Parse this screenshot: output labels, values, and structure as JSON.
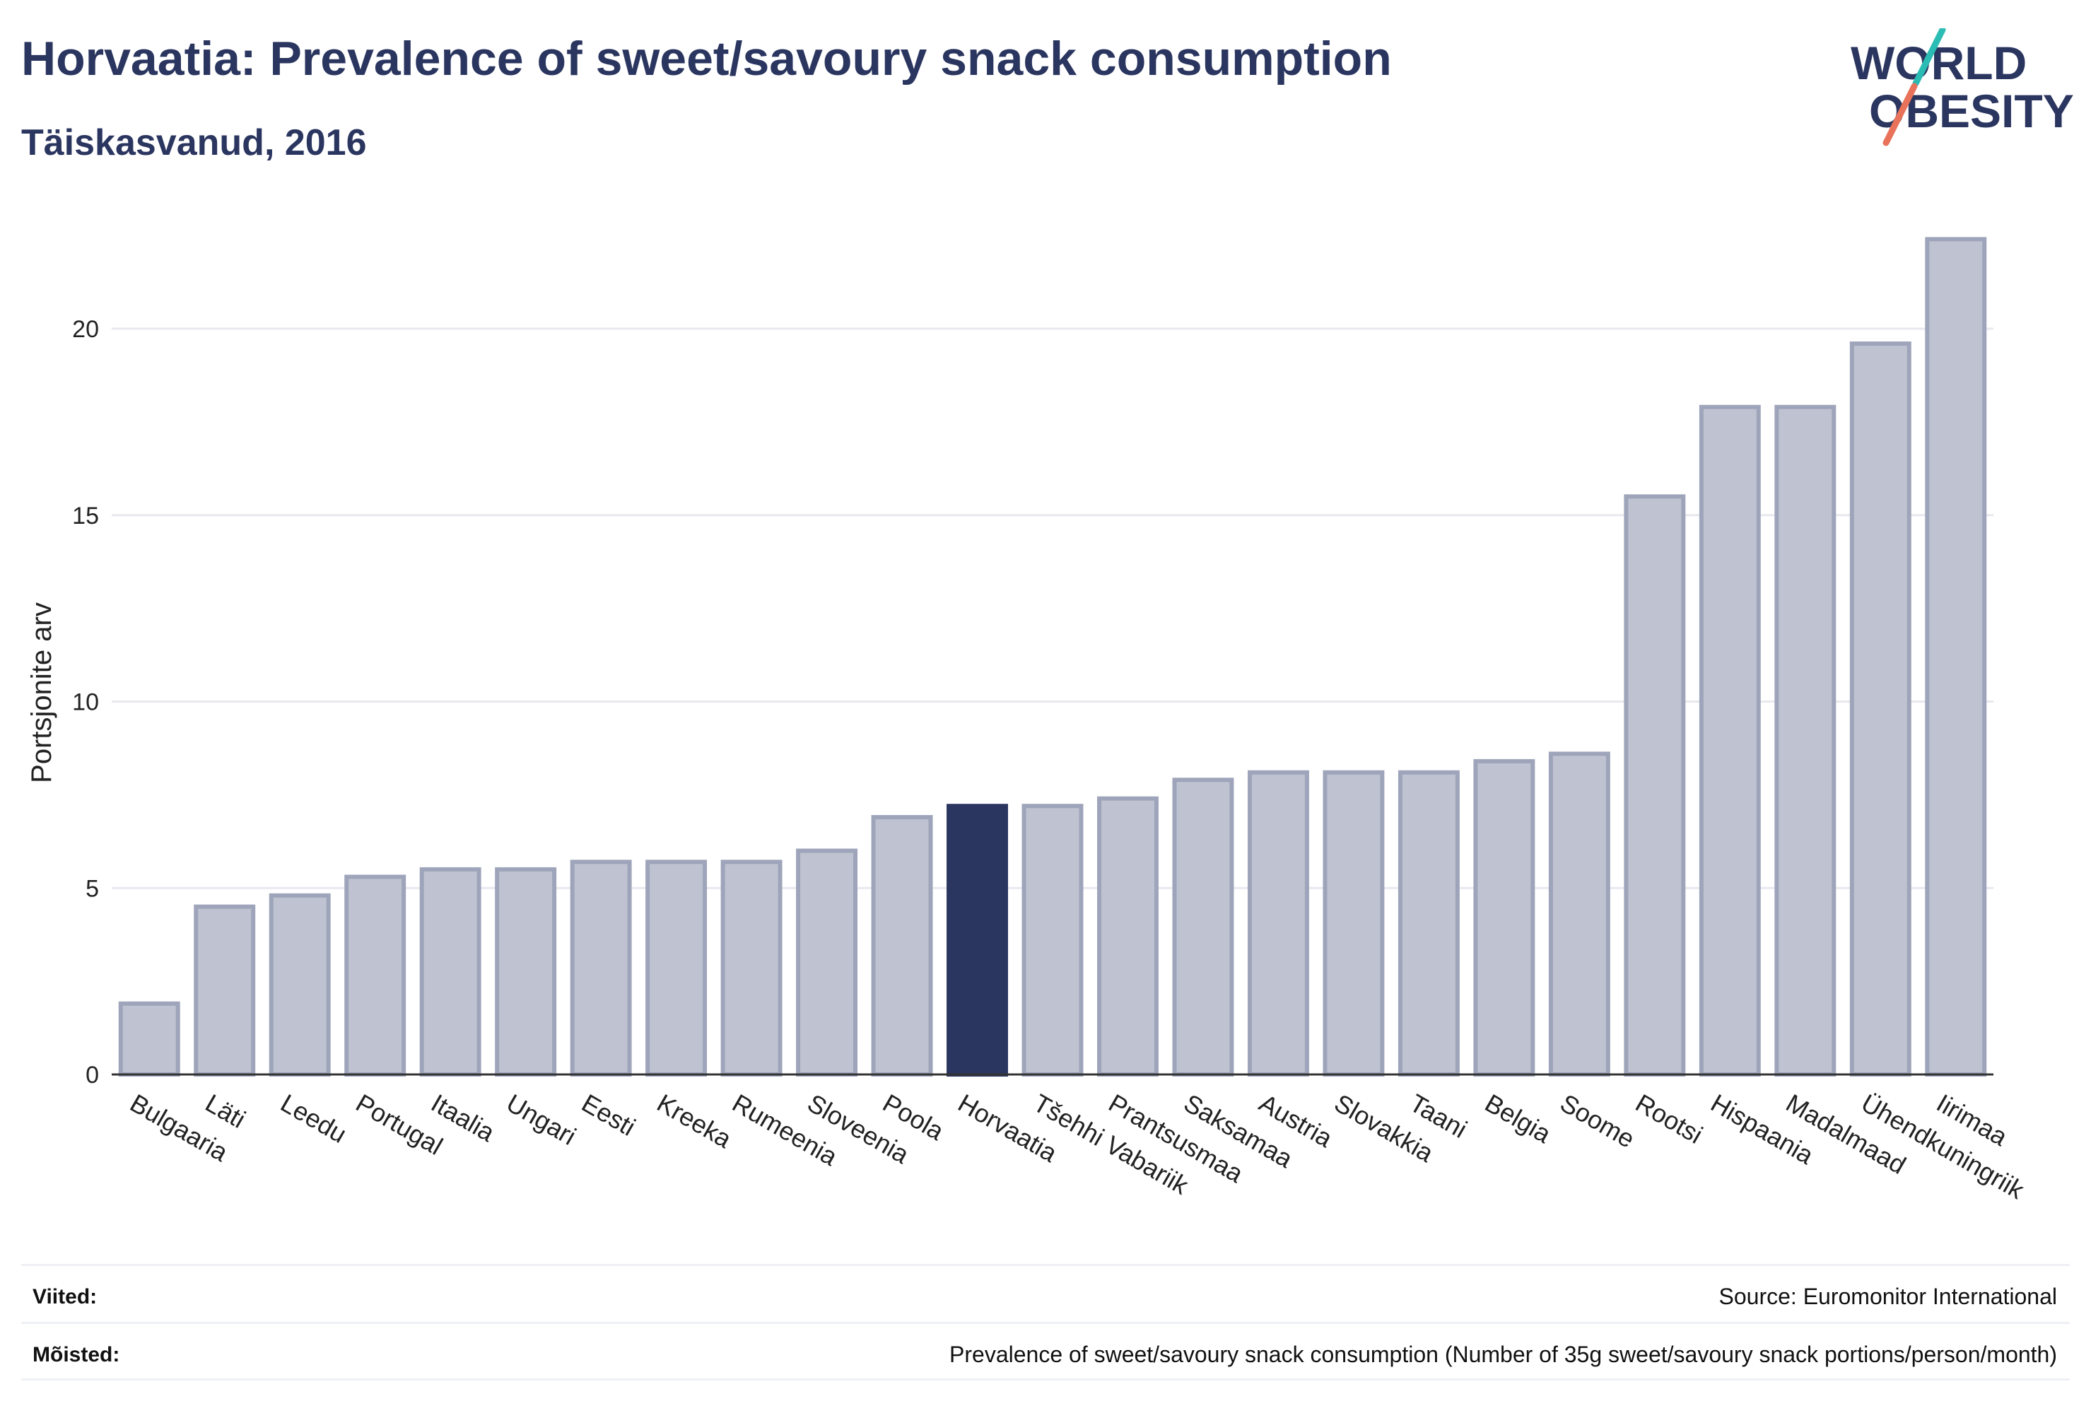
{
  "header": {
    "title": "Horvaatia: Prevalence of sweet/savoury snack consumption",
    "subtitle": "Täiskasvanud, 2016"
  },
  "logo": {
    "line1": "WORLD",
    "line2": "OBESITY",
    "colors": {
      "text": "#2b3660",
      "teal": "#2bbcb4",
      "coral": "#e8735a"
    }
  },
  "chart_data": {
    "type": "bar",
    "ylabel": "Portsjonite arv",
    "ylim": [
      0,
      23
    ],
    "yticks": [
      0,
      5,
      10,
      15,
      20
    ],
    "grid": true,
    "highlight": "Horvaatia",
    "colors": {
      "bar": "#bfc3d1",
      "bar_border": "#9ea4ba",
      "highlight": "#2b3660",
      "grid": "#e8e9ef",
      "axis": "#333333"
    },
    "categories": [
      "Bulgaaria",
      "Läti",
      "Leedu",
      "Portugal",
      "Itaalia",
      "Ungari",
      "Eesti",
      "Kreeka",
      "Rumeenia",
      "Sloveenia",
      "Poola",
      "Horvaatia",
      "Tšehhi Vabariik",
      "Prantsusmaa",
      "Saksamaa",
      "Austria",
      "Slovakkia",
      "Taani",
      "Belgia",
      "Soome",
      "Rootsi",
      "Hispaania",
      "Madalmaad",
      "Ühendkuningriik",
      "Iirimaa"
    ],
    "values": [
      1.9,
      4.5,
      4.8,
      5.3,
      5.5,
      5.5,
      5.7,
      5.7,
      5.7,
      6.0,
      6.9,
      7.2,
      7.2,
      7.4,
      7.9,
      8.1,
      8.1,
      8.1,
      8.4,
      8.6,
      15.5,
      17.9,
      17.9,
      19.6,
      22.4
    ]
  },
  "footer": {
    "references_label": "Viited:",
    "references_value": "Source: Euromonitor International",
    "definitions_label": "Mõisted:",
    "definitions_value": "Prevalence of sweet/savoury snack consumption (Number of 35g sweet/savoury snack portions/person/month)"
  }
}
